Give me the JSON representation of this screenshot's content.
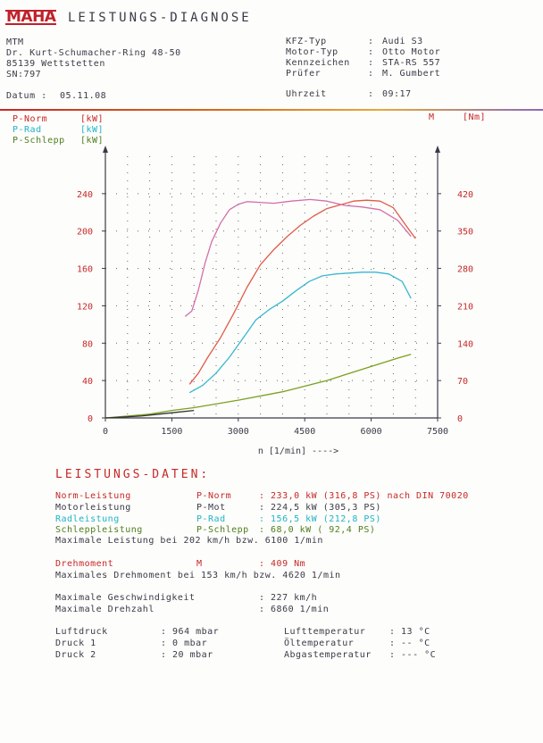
{
  "header": {
    "logo": "MAHA",
    "title": "LEISTUNGS-DIAGNOSE",
    "company": [
      "MTM",
      "Dr. Kurt-Schumacher-Ring 48-50",
      "85139 Wettstetten",
      "SN:797"
    ],
    "date_label": "Datum :",
    "date_value": "05.11.08",
    "fields": [
      {
        "label": "KFZ-Typ",
        "value": "Audi S3"
      },
      {
        "label": "Motor-Typ",
        "value": "Otto Motor"
      },
      {
        "label": "Kennzeichen",
        "value": "STA-RS 557"
      },
      {
        "label": "Prüfer",
        "value": "M. Gumbert"
      }
    ],
    "time_label": "Uhrzeit",
    "time_value": "09:17"
  },
  "legend": {
    "p_norm": "P-Norm",
    "p_rad": "P-Rad",
    "p_schlepp": "P-Schlepp",
    "unit_kw": "[kW]",
    "m_label": "M",
    "m_unit": "[Nm]"
  },
  "chart_data": {
    "type": "line",
    "x_ticks": [
      "0",
      "1500",
      "3000",
      "4500",
      "6000",
      "7500"
    ],
    "y_left_ticks": [
      "0",
      "40",
      "80",
      "120",
      "160",
      "200",
      "240"
    ],
    "y_right_ticks": [
      "0",
      "70",
      "140",
      "210",
      "280",
      "350",
      "420"
    ],
    "xlabel": "n [1/min] ---->",
    "xlim": [
      0,
      7500
    ],
    "ylim_left": [
      0,
      280
    ],
    "ylim_right": [
      0,
      490
    ],
    "grid": "dotted",
    "colors": {
      "p_norm": "#e05a4a",
      "torque": "#d36fa8",
      "p_rad": "#37b8d0",
      "p_schlepp": "#78a020",
      "p_mot": "#333333"
    },
    "series": [
      {
        "name": "P-Norm",
        "axis": "left",
        "x": [
          1900,
          2100,
          2300,
          2600,
          2900,
          3200,
          3500,
          3800,
          4100,
          4400,
          4700,
          5000,
          5300,
          5600,
          5900,
          6200,
          6500,
          6800,
          7000
        ],
        "y": [
          36,
          48,
          64,
          86,
          112,
          140,
          164,
          180,
          194,
          206,
          216,
          224,
          228,
          232,
          233,
          232,
          225,
          205,
          192
        ]
      },
      {
        "name": "M",
        "axis": "right",
        "x": [
          1800,
          1950,
          2100,
          2250,
          2400,
          2600,
          2800,
          3000,
          3200,
          3400,
          3800,
          4200,
          4620,
          5000,
          5400,
          5800,
          6200,
          6600,
          6900
        ],
        "y": [
          190,
          200,
          240,
          290,
          330,
          365,
          390,
          400,
          405,
          404,
          402,
          406,
          409,
          406,
          398,
          395,
          390,
          370,
          340
        ]
      },
      {
        "name": "P-Rad",
        "axis": "left",
        "x": [
          1900,
          2200,
          2500,
          2800,
          3100,
          3400,
          3700,
          4000,
          4300,
          4600,
          4900,
          5200,
          5500,
          5800,
          6100,
          6400,
          6700,
          6900
        ],
        "y": [
          27,
          35,
          48,
          65,
          85,
          105,
          116,
          125,
          136,
          146,
          152,
          154,
          155,
          156,
          156,
          154,
          146,
          128
        ]
      },
      {
        "name": "P-Schlepp",
        "axis": "left",
        "x": [
          0,
          500,
          1000,
          1500,
          2000,
          3000,
          4000,
          5000,
          6000,
          6600,
          6900
        ],
        "y": [
          0,
          2,
          4,
          8,
          11,
          19,
          28,
          40,
          55,
          64,
          68
        ]
      },
      {
        "name": "P-Mot",
        "axis": "left",
        "x": [
          0,
          400,
          800,
          1200,
          1600,
          2000
        ],
        "y": [
          0,
          1,
          2,
          4,
          6,
          8
        ]
      }
    ]
  },
  "data_section": {
    "title": "LEISTUNGS-DATEN:",
    "rows": [
      {
        "label": "Norm-Leistung",
        "sym": "P-Norm",
        "val": ":  233,0 kW (316,8 PS) nach DIN 70020",
        "cls": "red"
      },
      {
        "label": "Motorleistung",
        "sym": "P-Mot",
        "val": ":  224,5 kW (305,3 PS)",
        "cls": ""
      },
      {
        "label": "Radleistung",
        "sym": "P-Rad",
        "val": ":  156,5 kW (212,8 PS)",
        "cls": "cyan"
      },
      {
        "label": "Schleppleistung",
        "sym": "P-Schlepp",
        "val": ":  68,0 kW ( 92,4 PS)",
        "cls": "green"
      }
    ],
    "max_power": "Maximale Leistung bei 202 km/h bzw.  6100 1/min",
    "torque_label": "Drehmoment",
    "torque_sym": "M",
    "torque_val": ":     409 Nm",
    "max_torque": "Maximales Drehmoment bei 153 km/h bzw.  4620 1/min",
    "max_speed_label": "Maximale Geschwindigkeit",
    "max_speed_val": ":     227 km/h",
    "max_rpm_label": "Maximale Drehzahl",
    "max_rpm_val": ":    6860 1/min",
    "env": [
      {
        "label": "Luftdruck",
        "val": ":      964 mbar",
        "label2": "Lufttemperatur",
        "val2": ":      13 °C"
      },
      {
        "label": "Druck 1",
        "val": ":        0 mbar",
        "label2": "Öltemperatur",
        "val2": ":      -- °C"
      },
      {
        "label": "Druck 2",
        "val": ":       20 mbar",
        "label2": "Abgastemperatur",
        "val2": ":     --- °C"
      }
    ]
  }
}
